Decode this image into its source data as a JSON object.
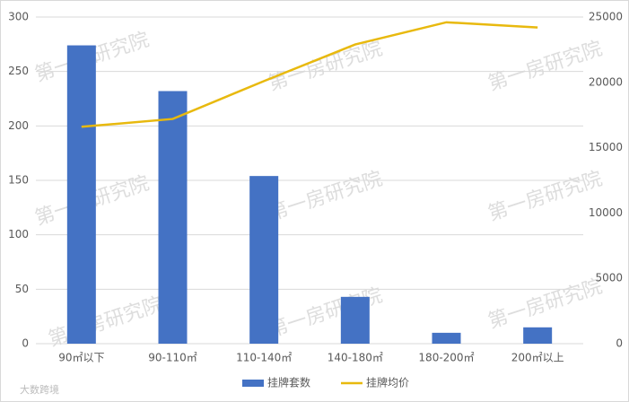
{
  "chart_data": {
    "type": "bar",
    "categories": [
      "90㎡以下",
      "90-110㎡",
      "110-140㎡",
      "140-180㎡",
      "180-200㎡",
      "200㎡以上"
    ],
    "series": [
      {
        "name": "挂牌套数",
        "type": "bar",
        "color": "#4472c4",
        "values": [
          274,
          232,
          154,
          43,
          10,
          15
        ]
      },
      {
        "name": "挂牌均价",
        "type": "line",
        "axis": "y2",
        "color": "#e8b90e",
        "values": [
          16600,
          17200,
          20100,
          22900,
          24600,
          24200
        ]
      }
    ],
    "ylim": [
      0,
      300
    ],
    "yticks": [
      0,
      50,
      100,
      150,
      200,
      250,
      300
    ],
    "y2lim": [
      0,
      25000
    ],
    "y2ticks": [
      0,
      5000,
      10000,
      15000,
      20000,
      25000
    ],
    "grid": true,
    "legend": "bottom",
    "watermark": "第一房研究院",
    "logo": "大数跨境"
  }
}
